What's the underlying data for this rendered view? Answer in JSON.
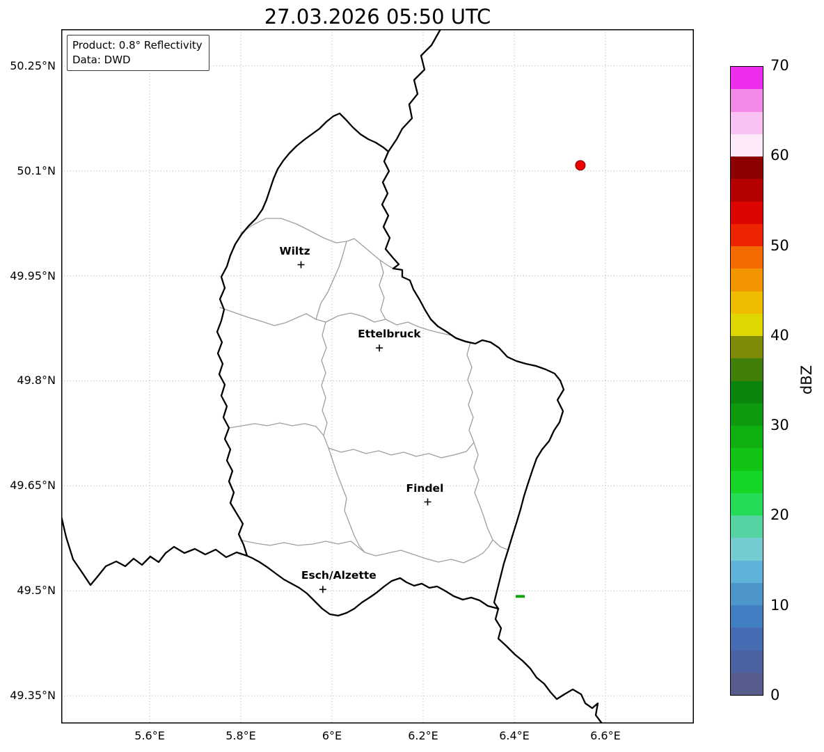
{
  "title": "27.03.2026 05:50 UTC",
  "info_box": {
    "line1": "Product: 0.8° Reflectivity",
    "line2": "Data: DWD"
  },
  "map": {
    "extent": {
      "lon_min": 5.406,
      "lon_max": 6.794,
      "lat_min": 49.3104,
      "lat_max": 50.3025
    },
    "x_ticks": [
      {
        "value": 5.6,
        "label": "5.6°E"
      },
      {
        "value": 5.8,
        "label": "5.8°E"
      },
      {
        "value": 6.0,
        "label": "6°E"
      },
      {
        "value": 6.2,
        "label": "6.2°E"
      },
      {
        "value": 6.4,
        "label": "6.4°E"
      },
      {
        "value": 6.6,
        "label": "6.6°E"
      }
    ],
    "y_ticks": [
      {
        "value": 50.25,
        "label": "50.25°N"
      },
      {
        "value": 50.1,
        "label": "50.1°N"
      },
      {
        "value": 49.95,
        "label": "49.95°N"
      },
      {
        "value": 49.8,
        "label": "49.8°N"
      },
      {
        "value": 49.65,
        "label": "49.65°N"
      },
      {
        "value": 49.5,
        "label": "49.5°N"
      },
      {
        "value": 49.35,
        "label": "49.35°N"
      }
    ],
    "cities": [
      {
        "name": "Wiltz",
        "lon": 5.932,
        "lat": 49.966
      },
      {
        "name": "Ettelbruck",
        "lon": 6.104,
        "lat": 49.847
      },
      {
        "name": "Findel",
        "lon": 6.21,
        "lat": 49.627
      },
      {
        "name": "Esch/Alzette",
        "lon": 5.98,
        "lat": 49.502
      }
    ],
    "radar_echoes": [
      {
        "shape": "dot",
        "lon": 6.545,
        "lat": 50.108,
        "color": "#ec0000"
      },
      {
        "shape": "dash",
        "lon": 6.413,
        "lat": 49.492,
        "color": "#0fa50f"
      }
    ]
  },
  "colorbar": {
    "label": "dBZ",
    "min": 0,
    "max": 70,
    "ticks": [
      0,
      10,
      20,
      30,
      40,
      50,
      60,
      70
    ],
    "segments_bottom_to_top": [
      "#565d8d",
      "#4d62a2",
      "#466cb4",
      "#427ec2",
      "#4c96cc",
      "#5fb2d8",
      "#74ccd2",
      "#55d2a2",
      "#25dc56",
      "#15d627",
      "#12c413",
      "#0fb010",
      "#0d9a0e",
      "#0b860c",
      "#40800a",
      "#7e8c07",
      "#e0d600",
      "#f0bc00",
      "#f29500",
      "#f26a00",
      "#ee2400",
      "#dc0500",
      "#b50000",
      "#8d0000",
      "#fdeafb",
      "#fac2f2",
      "#f48ae8",
      "#ee2dee"
    ]
  }
}
